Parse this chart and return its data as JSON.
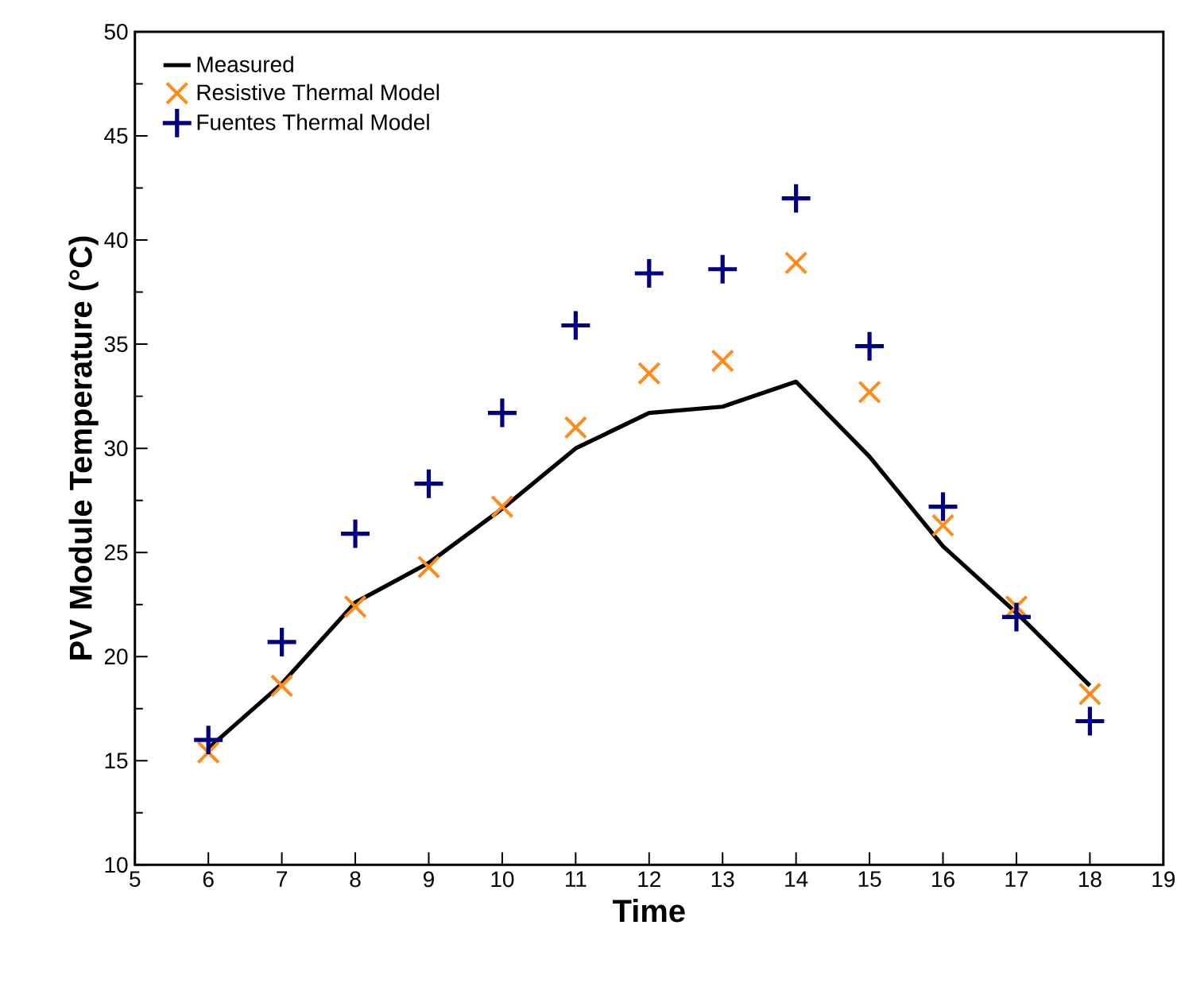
{
  "chart_data": {
    "type": "line",
    "xlabel": "Time",
    "ylabel": "PV Module Temperature (°C)",
    "xlim": [
      5,
      19
    ],
    "xticks": [
      5,
      6,
      7,
      8,
      9,
      10,
      11,
      12,
      13,
      14,
      15,
      16,
      17,
      18,
      19
    ],
    "ylim": [
      10,
      50
    ],
    "yticks": [
      10,
      15,
      20,
      25,
      30,
      35,
      40,
      45,
      50
    ],
    "x": [
      6,
      7,
      8,
      9,
      10,
      11,
      12,
      13,
      14,
      15,
      16,
      17,
      18
    ],
    "legend": "top left",
    "grid": false,
    "series": [
      {
        "name": "Measured",
        "marker": "none",
        "color": "#000000",
        "values": [
          15.6,
          18.7,
          22.6,
          24.5,
          27.1,
          30.0,
          31.7,
          32.0,
          33.2,
          29.6,
          25.3,
          22.1,
          18.6
        ]
      },
      {
        "name": "Resistive Thermal Model",
        "type": "scatter",
        "marker": "cross",
        "color": "#ff8c1a",
        "values": [
          15.4,
          18.6,
          22.4,
          24.3,
          27.2,
          31.0,
          33.6,
          34.2,
          38.9,
          32.7,
          26.3,
          22.4,
          18.2
        ]
      },
      {
        "name": "Fuentes Thermal Model",
        "type": "scatter",
        "marker": "plus",
        "color": "#000080",
        "values": [
          16.0,
          20.7,
          25.9,
          28.3,
          31.7,
          35.9,
          38.4,
          38.6,
          42.0,
          34.9,
          27.2,
          21.9,
          16.9
        ]
      }
    ]
  }
}
